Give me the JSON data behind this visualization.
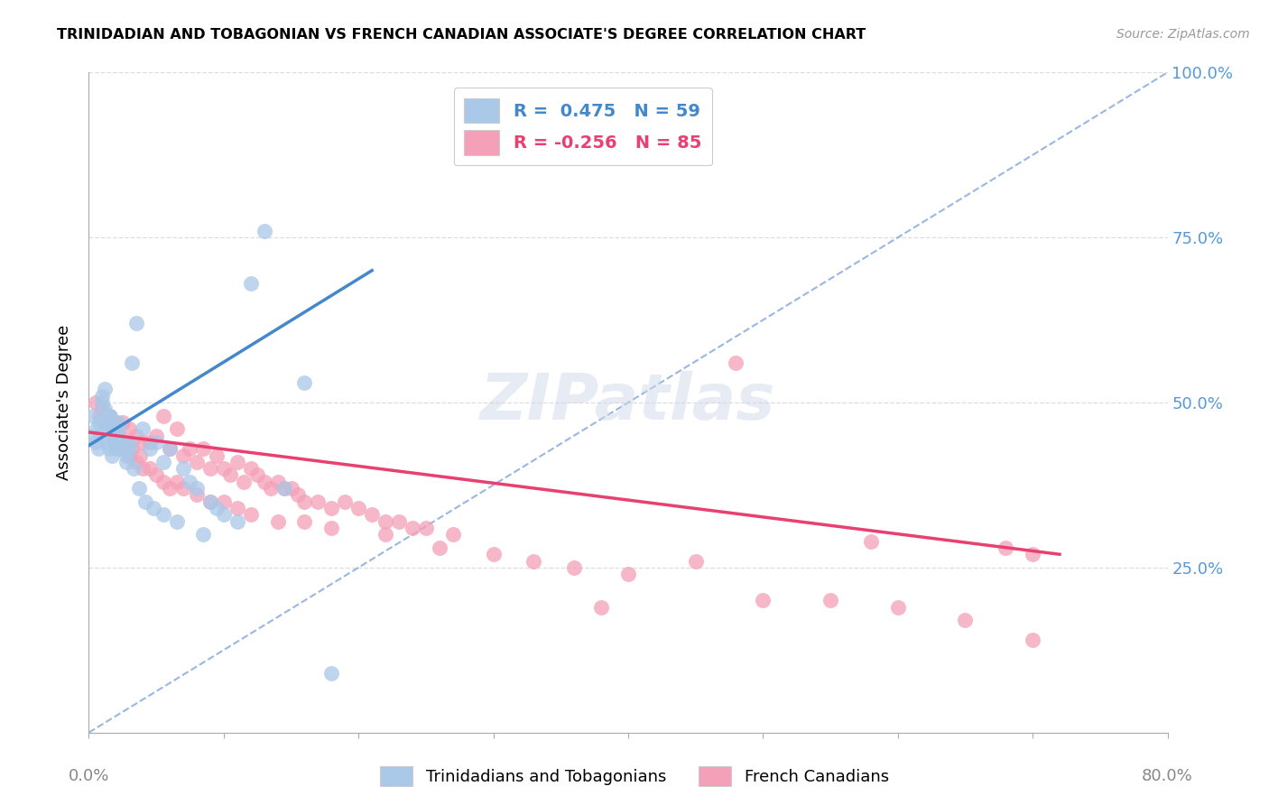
{
  "title": "TRINIDADIAN AND TOBAGONIAN VS FRENCH CANADIAN ASSOCIATE'S DEGREE CORRELATION CHART",
  "source": "Source: ZipAtlas.com",
  "ylabel": "Associate's Degree",
  "blue_color": "#aac8e8",
  "pink_color": "#f4a0b8",
  "blue_line_color": "#4488cc",
  "pink_line_color": "#e84070",
  "diag_color": "#88aadd",
  "legend_blue_text": "#4488cc",
  "legend_pink_text": "#e84070",
  "right_axis_color": "#5599dd",
  "grid_color": "#dddddd",
  "watermark_text": "ZIPatlas",
  "xmin": 0.0,
  "xmax": 80.0,
  "ymin": 0.0,
  "ymax": 100.0,
  "blue_line_x0": 0.0,
  "blue_line_y0": 43.5,
  "blue_line_x1": 21.0,
  "blue_line_y1": 70.0,
  "pink_line_x0": 0.0,
  "pink_line_y0": 45.5,
  "pink_line_x1": 72.0,
  "pink_line_y1": 27.0,
  "diag_x0": 0.0,
  "diag_y0": 0.0,
  "diag_x1": 80.0,
  "diag_y1": 100.0,
  "blue_x": [
    0.3,
    0.4,
    0.5,
    0.6,
    0.7,
    0.8,
    0.9,
    1.0,
    1.1,
    1.2,
    1.3,
    1.4,
    1.5,
    1.6,
    1.7,
    1.8,
    1.9,
    2.0,
    2.1,
    2.2,
    2.4,
    2.6,
    2.8,
    3.0,
    3.2,
    3.5,
    4.0,
    4.5,
    5.0,
    5.5,
    6.0,
    7.0,
    7.5,
    8.0,
    9.0,
    9.5,
    10.0,
    11.0,
    12.0,
    13.0,
    14.5,
    16.0,
    18.0,
    1.0,
    1.2,
    1.5,
    1.8,
    2.0,
    2.2,
    2.5,
    2.8,
    3.0,
    3.3,
    3.7,
    4.2,
    4.8,
    5.5,
    6.5,
    8.5
  ],
  "blue_y": [
    48,
    45,
    44,
    46,
    43,
    47,
    45,
    50,
    47,
    49,
    44,
    46,
    43,
    48,
    42,
    45,
    44,
    46,
    43,
    47,
    44,
    43,
    42,
    44,
    56,
    62,
    46,
    43,
    44,
    41,
    43,
    40,
    38,
    37,
    35,
    34,
    33,
    32,
    68,
    76,
    37,
    53,
    9,
    51,
    52,
    48,
    45,
    43,
    46,
    44,
    41,
    43,
    40,
    37,
    35,
    34,
    33,
    32,
    30
  ],
  "pink_x": [
    0.5,
    0.8,
    1.0,
    1.2,
    1.5,
    1.8,
    2.0,
    2.2,
    2.5,
    2.8,
    3.0,
    3.2,
    3.5,
    3.8,
    4.0,
    4.5,
    5.0,
    5.5,
    6.0,
    6.5,
    7.0,
    7.5,
    8.0,
    8.5,
    9.0,
    9.5,
    10.0,
    10.5,
    11.0,
    11.5,
    12.0,
    12.5,
    13.0,
    13.5,
    14.0,
    14.5,
    15.0,
    15.5,
    16.0,
    17.0,
    18.0,
    19.0,
    20.0,
    21.0,
    22.0,
    23.0,
    24.0,
    25.0,
    27.0,
    30.0,
    33.0,
    36.0,
    40.0,
    45.0,
    50.0,
    55.0,
    60.0,
    65.0,
    70.0,
    2.0,
    2.5,
    3.0,
    3.5,
    4.0,
    4.5,
    5.0,
    5.5,
    6.0,
    6.5,
    7.0,
    8.0,
    9.0,
    10.0,
    11.0,
    12.0,
    14.0,
    16.0,
    18.0,
    22.0,
    26.0,
    38.0,
    48.0,
    58.0,
    68.0,
    70.0
  ],
  "pink_y": [
    50,
    48,
    49,
    47,
    48,
    46,
    47,
    45,
    47,
    44,
    46,
    43,
    45,
    42,
    44,
    44,
    45,
    48,
    43,
    46,
    42,
    43,
    41,
    43,
    40,
    42,
    40,
    39,
    41,
    38,
    40,
    39,
    38,
    37,
    38,
    37,
    37,
    36,
    35,
    35,
    34,
    35,
    34,
    33,
    32,
    32,
    31,
    31,
    30,
    27,
    26,
    25,
    24,
    26,
    20,
    20,
    19,
    17,
    27,
    44,
    43,
    42,
    41,
    40,
    40,
    39,
    38,
    37,
    38,
    37,
    36,
    35,
    35,
    34,
    33,
    32,
    32,
    31,
    30,
    28,
    19,
    56,
    29,
    28,
    14
  ]
}
